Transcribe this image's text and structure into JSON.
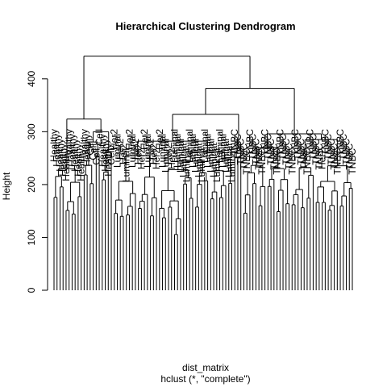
{
  "chart_data": {
    "type": "dendrogram",
    "title": "Hierarchical Clustering Dendrogram",
    "xlabel": "dist_matrix",
    "sublabel": "hclust (*, \"complete\")",
    "ylabel": "Height",
    "ylim": [
      0,
      460
    ],
    "yticks": [
      0,
      100,
      200,
      300,
      400
    ],
    "leaf_count": 100,
    "top_merges": [
      {
        "height": 443,
        "left": "cluster-A",
        "right": "cluster-BC"
      },
      {
        "height": 382,
        "left": "cluster-B",
        "right": "cluster-C"
      },
      {
        "height": 333,
        "left": "cluster-B1",
        "right": "cluster-B2"
      },
      {
        "height": 324,
        "left": "cluster-A1",
        "right": "cluster-A2"
      },
      {
        "height": 296,
        "left": "cluster-C1",
        "right": "cluster-C2"
      },
      {
        "height": 282,
        "left": "cluster-B1a",
        "right": "cluster-B1b"
      }
    ],
    "leaf_labels": [
      "Healthy",
      "Healthy",
      "Healthy",
      "Healthy",
      "Healthy",
      "Healthy",
      "Healthy",
      "Healthy",
      "Healthy",
      "Healthy",
      "Healthy",
      "Healthy",
      "Cell",
      "Cell",
      "Cell",
      "Cell",
      "Healthy",
      "Healthy",
      "Healthy",
      "Cell",
      "Her2",
      "Luminal",
      "Her2",
      "Her2",
      "Luminal",
      "Her2",
      "Luminal",
      "Her2",
      "Her2",
      "Her2",
      "Her2",
      "Luminal",
      "Her2",
      "Her2",
      "Her2",
      "Her2",
      "Luminal",
      "Luminal",
      "Her2",
      "Her2",
      "Luminal",
      "Luminal",
      "Luminal",
      "Luminal",
      "Luminal",
      "Luminal",
      "Luminal",
      "Luminal",
      "Luminal",
      "Luminal",
      "Luminal",
      "Luminal",
      "Luminal",
      "Luminal",
      "Luminal",
      "Luminal",
      "Luminal",
      "Luminal",
      "Luminal",
      "Luminal",
      "TNBC",
      "TNBC",
      "TNBC",
      "TNBC",
      "TNBC",
      "TNBC",
      "TNBC",
      "TNBC",
      "TNBC",
      "TNBC",
      "TNBC",
      "TNBC",
      "TNBC",
      "TNBC",
      "TNBC",
      "TNBC",
      "TNBC",
      "TNBC",
      "TNBC",
      "TNBC",
      "TNBC",
      "TNBC",
      "TNBC",
      "TNBC",
      "TNBC",
      "TNBC",
      "TNBC",
      "TNBC",
      "TNBC",
      "Her2",
      "TNBC",
      "TNBC",
      "TNBC",
      "TNBC",
      "TNBC",
      "TNBC",
      "TNBC",
      "TNBC",
      "TNBC",
      "TNBC"
    ],
    "grid": false,
    "legend": "none"
  }
}
